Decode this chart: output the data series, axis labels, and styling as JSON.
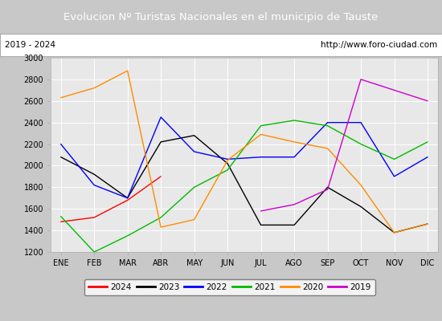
{
  "title": "Evolucion Nº Turistas Nacionales en el municipio de Tauste",
  "subtitle_left": "2019 - 2024",
  "subtitle_right": "http://www.foro-ciudad.com",
  "title_bg_color": "#4472c4",
  "title_text_color": "#ffffff",
  "months": [
    "ENE",
    "FEB",
    "MAR",
    "ABR",
    "MAY",
    "JUN",
    "JUL",
    "AGO",
    "SEP",
    "OCT",
    "NOV",
    "DIC"
  ],
  "ylim": [
    1200,
    3000
  ],
  "yticks": [
    1200,
    1400,
    1600,
    1800,
    2000,
    2200,
    2400,
    2600,
    2800,
    3000
  ],
  "series": {
    "2024": {
      "color": "#ff0000",
      "values": [
        1480,
        1520,
        1680,
        1900,
        null,
        null,
        null,
        null,
        null,
        null,
        null,
        null
      ]
    },
    "2023": {
      "color": "#000000",
      "values": [
        2080,
        1920,
        1700,
        2220,
        2280,
        2020,
        1450,
        1450,
        1800,
        1620,
        1380,
        1460
      ]
    },
    "2022": {
      "color": "#0000ff",
      "values": [
        2200,
        1820,
        1700,
        2450,
        2130,
        2060,
        2080,
        2080,
        2400,
        2400,
        1900,
        2080
      ]
    },
    "2021": {
      "color": "#00bb00",
      "values": [
        1530,
        1200,
        1350,
        1520,
        1800,
        1960,
        2370,
        2420,
        2370,
        2200,
        2060,
        2220
      ]
    },
    "2020": {
      "color": "#ff8c00",
      "values": [
        2630,
        2720,
        2880,
        1430,
        1500,
        2050,
        2290,
        2220,
        2160,
        1820,
        1380,
        1460
      ]
    },
    "2019": {
      "color": "#cc00cc",
      "values": [
        null,
        null,
        null,
        null,
        null,
        null,
        1580,
        1640,
        1780,
        2800,
        2700,
        2600
      ]
    }
  },
  "legend_order": [
    "2024",
    "2023",
    "2022",
    "2021",
    "2020",
    "2019"
  ],
  "plot_bg_color": "#e8e8e8",
  "grid_color": "#ffffff"
}
